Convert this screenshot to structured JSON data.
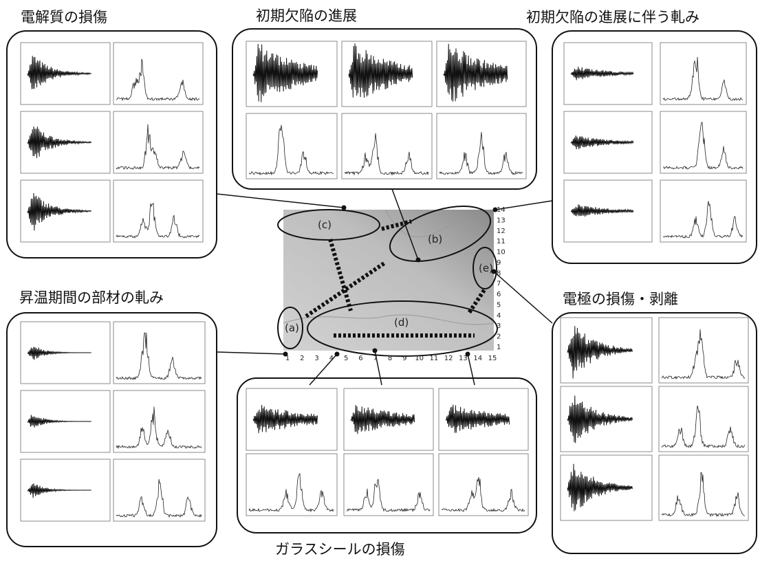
{
  "panels": [
    {
      "title": "電解質の損傷"
    },
    {
      "title": "初期欠陥の進展"
    },
    {
      "title": "初期欠陥の進展に伴う軋み"
    },
    {
      "title": "昇温期間の部材の軋み"
    },
    {
      "title": "電極の損傷・剥離"
    },
    {
      "title": "ガラスシールの損傷"
    }
  ],
  "map": {
    "labels": [
      "(a)",
      "(b)",
      "(c)",
      "(d)",
      "(e)"
    ],
    "x_ticks": [
      1,
      2,
      3,
      4,
      5,
      6,
      7,
      8,
      9,
      10,
      11,
      12,
      13,
      14,
      15
    ],
    "y_ticks": [
      1,
      2,
      3,
      4,
      5,
      6,
      7,
      8,
      9,
      10,
      11,
      12,
      13,
      14
    ]
  }
}
